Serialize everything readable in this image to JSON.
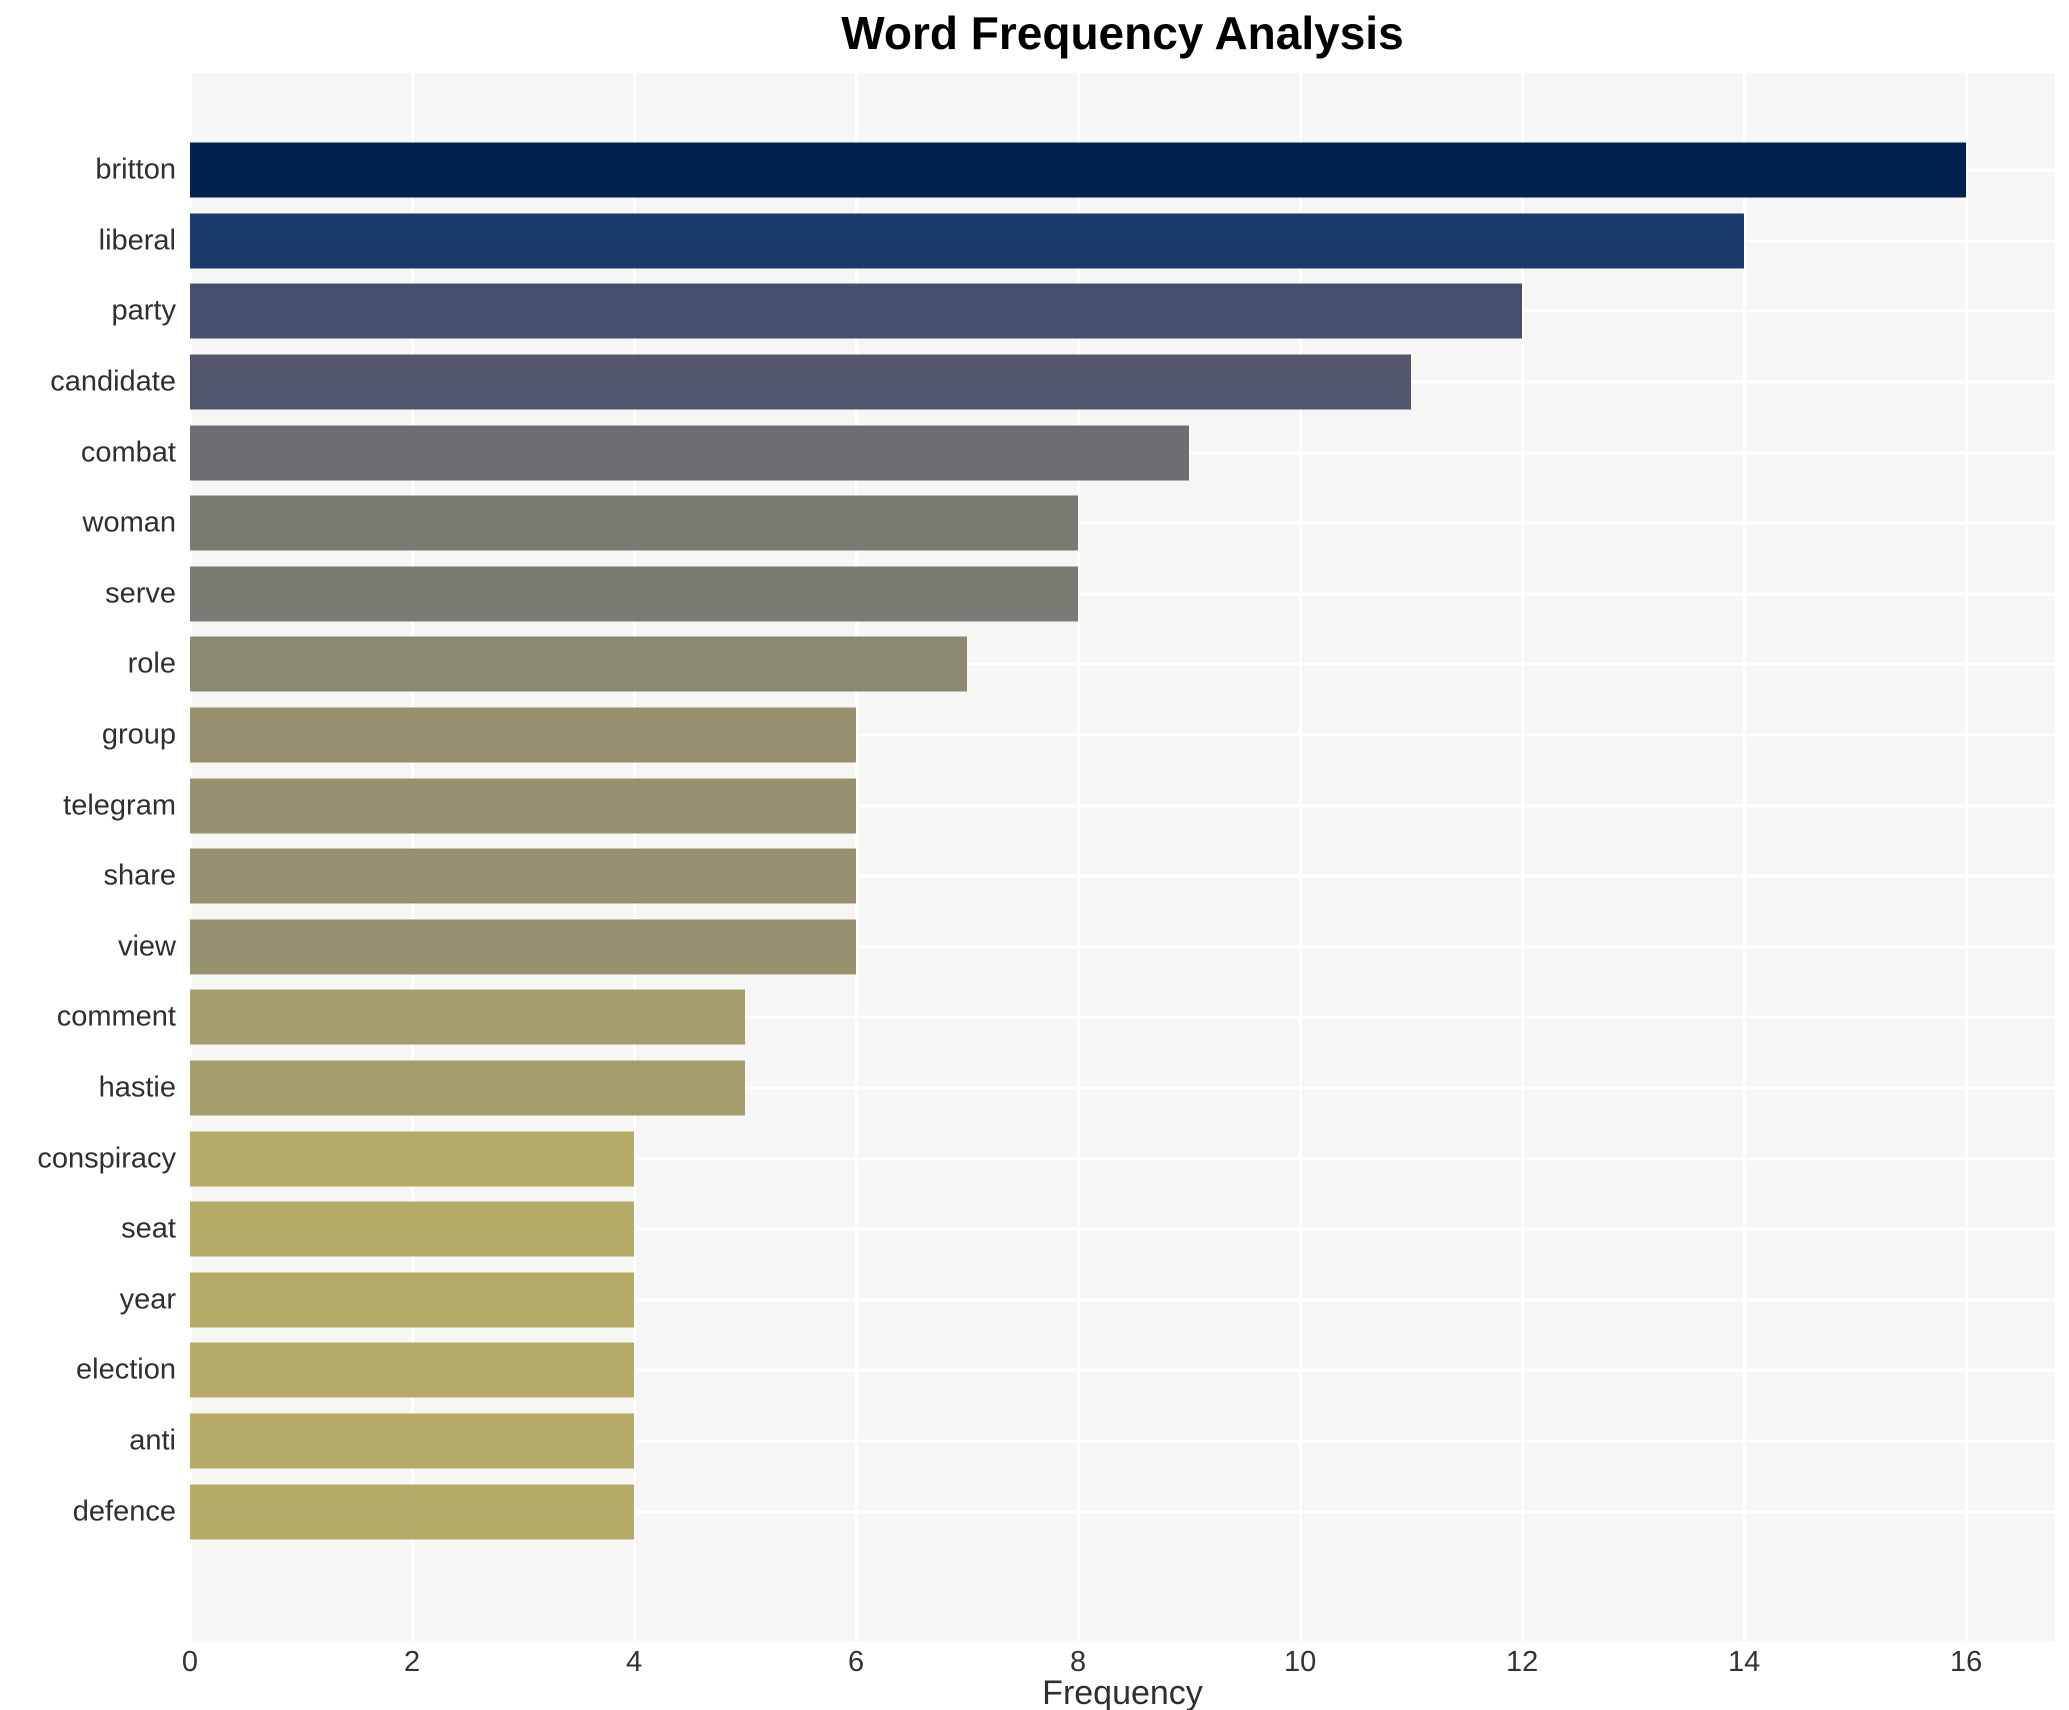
{
  "title": "Word Frequency Analysis",
  "chart_data": {
    "type": "bar",
    "orientation": "horizontal",
    "title": "Word Frequency Analysis",
    "xlabel": "Frequency",
    "ylabel": "",
    "categories": [
      "britton",
      "liberal",
      "party",
      "candidate",
      "combat",
      "woman",
      "serve",
      "role",
      "group",
      "telegram",
      "share",
      "view",
      "comment",
      "hastie",
      "conspiracy",
      "seat",
      "year",
      "election",
      "anti",
      "defence"
    ],
    "values": [
      16,
      14,
      12,
      11,
      9,
      8,
      8,
      7,
      6,
      6,
      6,
      6,
      5,
      5,
      4,
      4,
      4,
      4,
      4,
      4
    ],
    "bar_colors": [
      "#00224e",
      "#1d3a6d",
      "#474f6e",
      "#52566c",
      "#6c6e72",
      "#7a7b72",
      "#7a7b72",
      "#8b8872",
      "#989170",
      "#989170",
      "#989170",
      "#989170",
      "#a59d6c",
      "#a59d6c",
      "#b5ab66",
      "#b5ab66",
      "#b5ab66",
      "#b5ab66",
      "#b5ab66",
      "#b5ab66"
    ],
    "xlim": [
      0,
      16.8
    ],
    "xticks": [
      0,
      2,
      4,
      6,
      8,
      10,
      12,
      14,
      16
    ],
    "grid": true,
    "legend_visible": false,
    "colors": {
      "plot_background": "#f6f6f5",
      "outer_background": "#ffffff",
      "gridline": "#ffffff",
      "title_text": "#000000",
      "tick_text": "#333333",
      "label_text": "#2f2f2f"
    }
  }
}
